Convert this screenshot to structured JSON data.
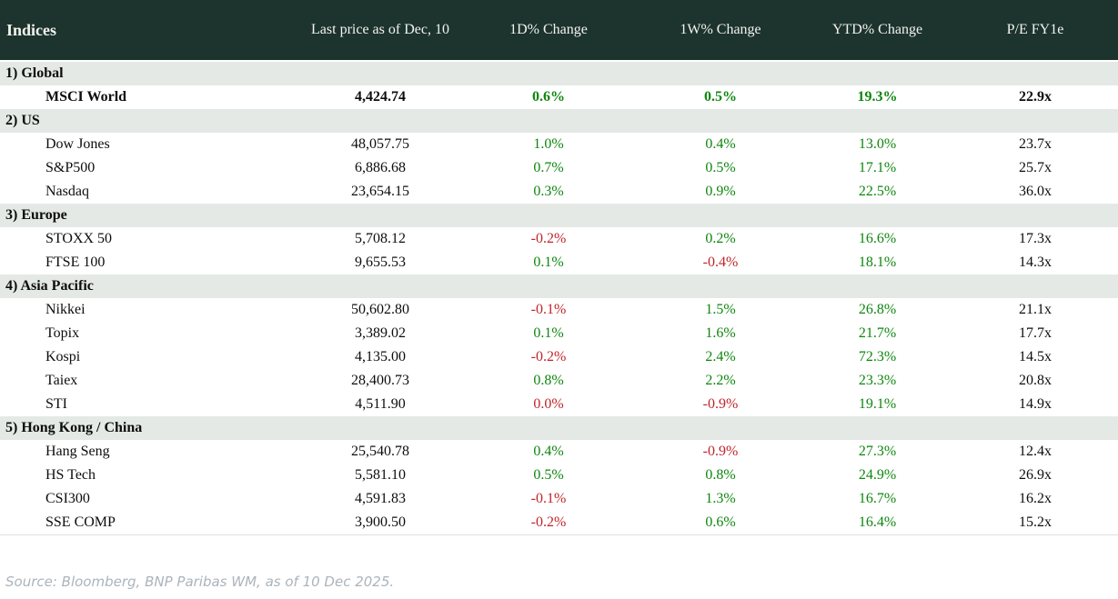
{
  "colors": {
    "header_bg": "#1c332e",
    "header_text": "#f4f3ec",
    "section_bg": "#e4e9e6",
    "positive": "#0e860e",
    "negative": "#c0242a",
    "text": "#0d0d0d",
    "source_text": "#abb4bc",
    "table_border": "#dce0dc"
  },
  "table": {
    "columns": [
      "Indices",
      "Last price as of Dec, 10",
      "1D% Change",
      "1W% Change",
      "YTD% Change",
      "P/E FY1e"
    ],
    "sections": [
      {
        "label": "1) Global",
        "rows": [
          {
            "name": "MSCI World",
            "bold": true,
            "price": "4,424.74",
            "d1": {
              "v": "0.6%",
              "c": "up"
            },
            "w1": {
              "v": "0.5%",
              "c": "up"
            },
            "ytd": {
              "v": "19.3%",
              "c": "up"
            },
            "pe": "22.9x"
          }
        ]
      },
      {
        "label": "2) US",
        "rows": [
          {
            "name": "Dow Jones",
            "price": "48,057.75",
            "d1": {
              "v": "1.0%",
              "c": "up"
            },
            "w1": {
              "v": "0.4%",
              "c": "up"
            },
            "ytd": {
              "v": "13.0%",
              "c": "up"
            },
            "pe": "23.7x"
          },
          {
            "name": "S&P500",
            "price": "6,886.68",
            "d1": {
              "v": "0.7%",
              "c": "up"
            },
            "w1": {
              "v": "0.5%",
              "c": "up"
            },
            "ytd": {
              "v": "17.1%",
              "c": "up"
            },
            "pe": "25.7x"
          },
          {
            "name": "Nasdaq",
            "price": "23,654.15",
            "d1": {
              "v": "0.3%",
              "c": "up"
            },
            "w1": {
              "v": "0.9%",
              "c": "up"
            },
            "ytd": {
              "v": "22.5%",
              "c": "up"
            },
            "pe": "36.0x"
          }
        ]
      },
      {
        "label": "3) Europe",
        "rows": [
          {
            "name": "STOXX 50",
            "price": "5,708.12",
            "d1": {
              "v": "-0.2%",
              "c": "down"
            },
            "w1": {
              "v": "0.2%",
              "c": "up"
            },
            "ytd": {
              "v": "16.6%",
              "c": "up"
            },
            "pe": "17.3x"
          },
          {
            "name": "FTSE 100",
            "price": "9,655.53",
            "d1": {
              "v": "0.1%",
              "c": "up"
            },
            "w1": {
              "v": "-0.4%",
              "c": "down"
            },
            "ytd": {
              "v": "18.1%",
              "c": "up"
            },
            "pe": "14.3x"
          }
        ]
      },
      {
        "label": "4) Asia Pacific",
        "rows": [
          {
            "name": "Nikkei",
            "price": "50,602.80",
            "d1": {
              "v": "-0.1%",
              "c": "down"
            },
            "w1": {
              "v": "1.5%",
              "c": "up"
            },
            "ytd": {
              "v": "26.8%",
              "c": "up"
            },
            "pe": "21.1x"
          },
          {
            "name": "Topix",
            "price": "3,389.02",
            "d1": {
              "v": "0.1%",
              "c": "up"
            },
            "w1": {
              "v": "1.6%",
              "c": "up"
            },
            "ytd": {
              "v": "21.7%",
              "c": "up"
            },
            "pe": "17.7x"
          },
          {
            "name": "Kospi",
            "price": "4,135.00",
            "d1": {
              "v": "-0.2%",
              "c": "down"
            },
            "w1": {
              "v": "2.4%",
              "c": "up"
            },
            "ytd": {
              "v": "72.3%",
              "c": "up"
            },
            "pe": "14.5x"
          },
          {
            "name": "Taiex",
            "price": "28,400.73",
            "d1": {
              "v": "0.8%",
              "c": "up"
            },
            "w1": {
              "v": "2.2%",
              "c": "up"
            },
            "ytd": {
              "v": "23.3%",
              "c": "up"
            },
            "pe": "20.8x"
          },
          {
            "name": "STI",
            "price": "4,511.90",
            "d1": {
              "v": "0.0%",
              "c": "down"
            },
            "w1": {
              "v": "-0.9%",
              "c": "down"
            },
            "ytd": {
              "v": "19.1%",
              "c": "up"
            },
            "pe": "14.9x"
          }
        ]
      },
      {
        "label": "5) Hong Kong / China",
        "rows": [
          {
            "name": "Hang Seng",
            "price": "25,540.78",
            "d1": {
              "v": "0.4%",
              "c": "up"
            },
            "w1": {
              "v": "-0.9%",
              "c": "down"
            },
            "ytd": {
              "v": "27.3%",
              "c": "up"
            },
            "pe": "12.4x"
          },
          {
            "name": "HS Tech",
            "price": "5,581.10",
            "d1": {
              "v": "0.5%",
              "c": "up"
            },
            "w1": {
              "v": "0.8%",
              "c": "up"
            },
            "ytd": {
              "v": "24.9%",
              "c": "up"
            },
            "pe": "26.9x"
          },
          {
            "name": "CSI300",
            "price": "4,591.83",
            "d1": {
              "v": "-0.1%",
              "c": "down"
            },
            "w1": {
              "v": "1.3%",
              "c": "up"
            },
            "ytd": {
              "v": "16.7%",
              "c": "up"
            },
            "pe": "16.2x"
          },
          {
            "name": "SSE COMP",
            "price": "3,900.50",
            "d1": {
              "v": "-0.2%",
              "c": "down"
            },
            "w1": {
              "v": "0.6%",
              "c": "up"
            },
            "ytd": {
              "v": "16.4%",
              "c": "up"
            },
            "pe": "15.2x"
          }
        ]
      }
    ]
  },
  "footer": {
    "source": "Source: Bloomberg, BNP Paribas WM, as of 10 Dec 2025."
  },
  "chart_data": {
    "type": "table",
    "title": "Indices",
    "columns": [
      "Indices",
      "Last price as of Dec, 10",
      "1D% Change",
      "1W% Change",
      "YTD% Change",
      "P/E FY1e"
    ],
    "rows": [
      {
        "section": "1) Global",
        "index": "MSCI World",
        "last_price": 4424.74,
        "chg_1d_pct": 0.6,
        "chg_1w_pct": 0.5,
        "chg_ytd_pct": 19.3,
        "pe_fy1e": 22.9
      },
      {
        "section": "2) US",
        "index": "Dow Jones",
        "last_price": 48057.75,
        "chg_1d_pct": 1.0,
        "chg_1w_pct": 0.4,
        "chg_ytd_pct": 13.0,
        "pe_fy1e": 23.7
      },
      {
        "section": "2) US",
        "index": "S&P500",
        "last_price": 6886.68,
        "chg_1d_pct": 0.7,
        "chg_1w_pct": 0.5,
        "chg_ytd_pct": 17.1,
        "pe_fy1e": 25.7
      },
      {
        "section": "2) US",
        "index": "Nasdaq",
        "last_price": 23654.15,
        "chg_1d_pct": 0.3,
        "chg_1w_pct": 0.9,
        "chg_ytd_pct": 22.5,
        "pe_fy1e": 36.0
      },
      {
        "section": "3) Europe",
        "index": "STOXX 50",
        "last_price": 5708.12,
        "chg_1d_pct": -0.2,
        "chg_1w_pct": 0.2,
        "chg_ytd_pct": 16.6,
        "pe_fy1e": 17.3
      },
      {
        "section": "3) Europe",
        "index": "FTSE 100",
        "last_price": 9655.53,
        "chg_1d_pct": 0.1,
        "chg_1w_pct": -0.4,
        "chg_ytd_pct": 18.1,
        "pe_fy1e": 14.3
      },
      {
        "section": "4) Asia Pacific",
        "index": "Nikkei",
        "last_price": 50602.8,
        "chg_1d_pct": -0.1,
        "chg_1w_pct": 1.5,
        "chg_ytd_pct": 26.8,
        "pe_fy1e": 21.1
      },
      {
        "section": "4) Asia Pacific",
        "index": "Topix",
        "last_price": 3389.02,
        "chg_1d_pct": 0.1,
        "chg_1w_pct": 1.6,
        "chg_ytd_pct": 21.7,
        "pe_fy1e": 17.7
      },
      {
        "section": "4) Asia Pacific",
        "index": "Kospi",
        "last_price": 4135.0,
        "chg_1d_pct": -0.2,
        "chg_1w_pct": 2.4,
        "chg_ytd_pct": 72.3,
        "pe_fy1e": 14.5
      },
      {
        "section": "4) Asia Pacific",
        "index": "Taiex",
        "last_price": 28400.73,
        "chg_1d_pct": 0.8,
        "chg_1w_pct": 2.2,
        "chg_ytd_pct": 23.3,
        "pe_fy1e": 20.8
      },
      {
        "section": "4) Asia Pacific",
        "index": "STI",
        "last_price": 4511.9,
        "chg_1d_pct": 0.0,
        "chg_1w_pct": -0.9,
        "chg_ytd_pct": 19.1,
        "pe_fy1e": 14.9
      },
      {
        "section": "5) Hong Kong / China",
        "index": "Hang Seng",
        "last_price": 25540.78,
        "chg_1d_pct": 0.4,
        "chg_1w_pct": -0.9,
        "chg_ytd_pct": 27.3,
        "pe_fy1e": 12.4
      },
      {
        "section": "5) Hong Kong / China",
        "index": "HS Tech",
        "last_price": 5581.1,
        "chg_1d_pct": 0.5,
        "chg_1w_pct": 0.8,
        "chg_ytd_pct": 24.9,
        "pe_fy1e": 26.9
      },
      {
        "section": "5) Hong Kong / China",
        "index": "CSI300",
        "last_price": 4591.83,
        "chg_1d_pct": -0.1,
        "chg_1w_pct": 1.3,
        "chg_ytd_pct": 16.7,
        "pe_fy1e": 16.2
      },
      {
        "section": "5) Hong Kong / China",
        "index": "SSE COMP",
        "last_price": 3900.5,
        "chg_1d_pct": -0.2,
        "chg_1w_pct": 0.6,
        "chg_ytd_pct": 16.4,
        "pe_fy1e": 15.2
      }
    ]
  }
}
